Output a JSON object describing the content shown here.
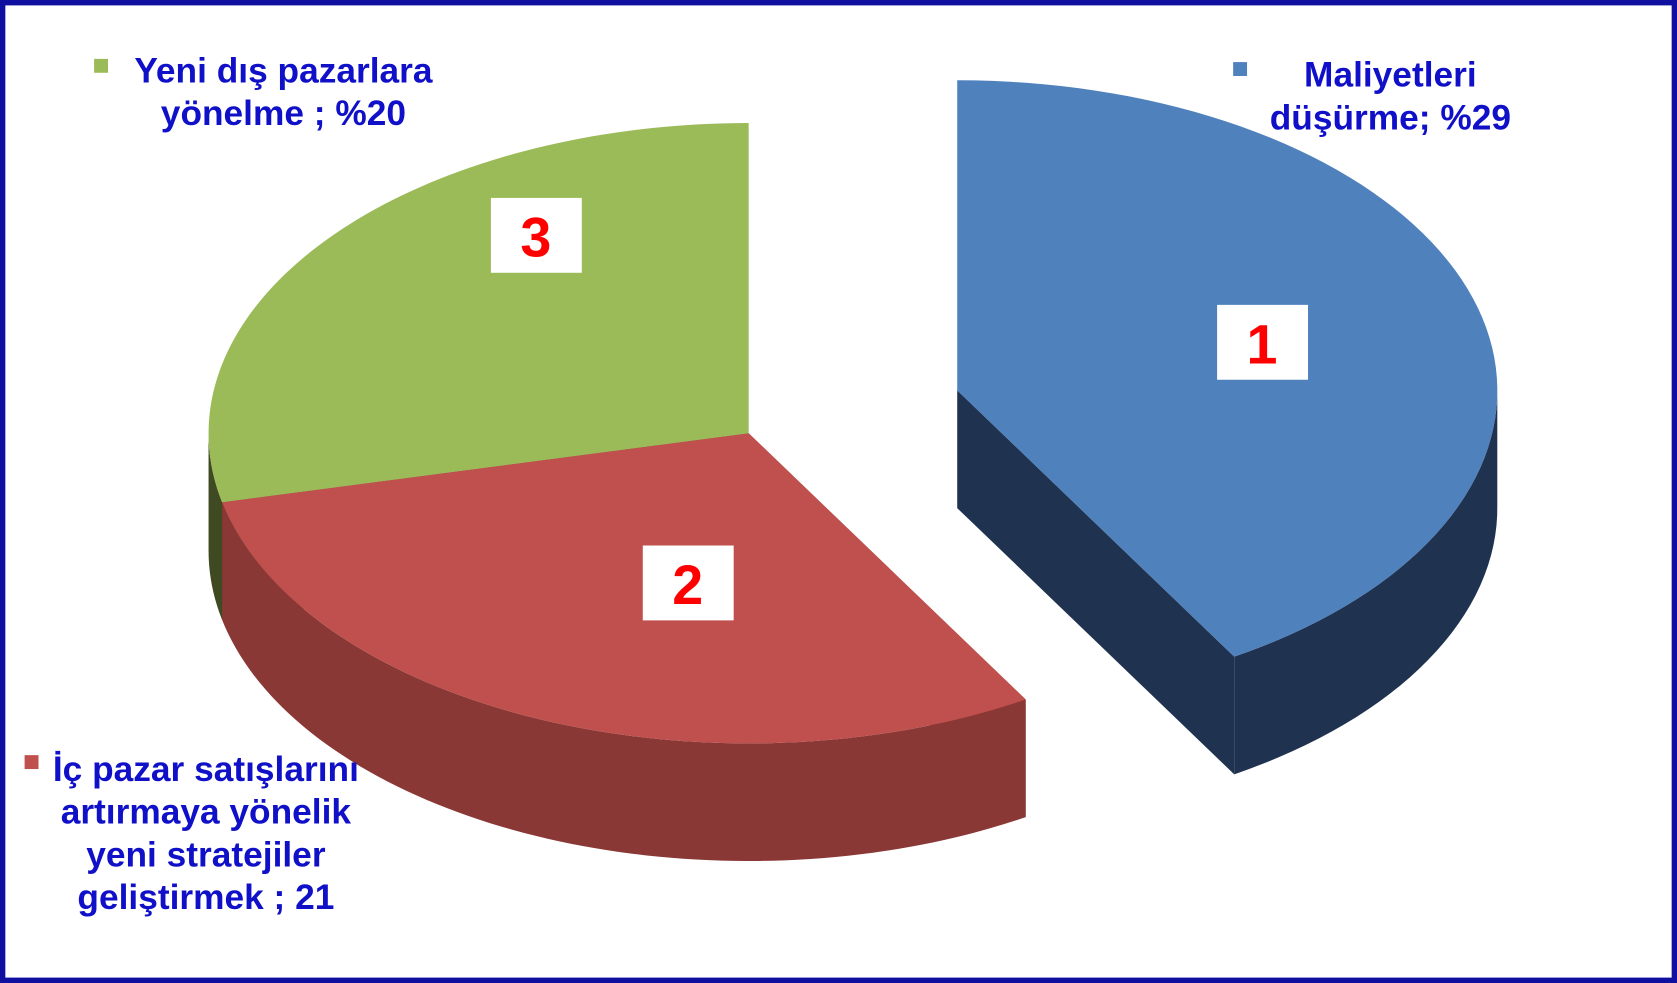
{
  "chart_data": {
    "type": "pie3d",
    "labels": [
      "Maliyetleri düşürme; %29",
      "İç pazar satışlarını artırmaya yönelik yeni stratejiler geliştirmek ; 21",
      "Yeni dış pazarlara yönelme ; %20"
    ],
    "values": [
      29,
      21,
      20
    ],
    "slice_numbers": [
      1,
      2,
      3
    ],
    "colors": [
      "#4f81bd",
      "#c0504d",
      "#9bbb59"
    ],
    "side_colors": [
      "#1f324f",
      "#8a3836",
      "#3f4a22"
    ]
  }
}
